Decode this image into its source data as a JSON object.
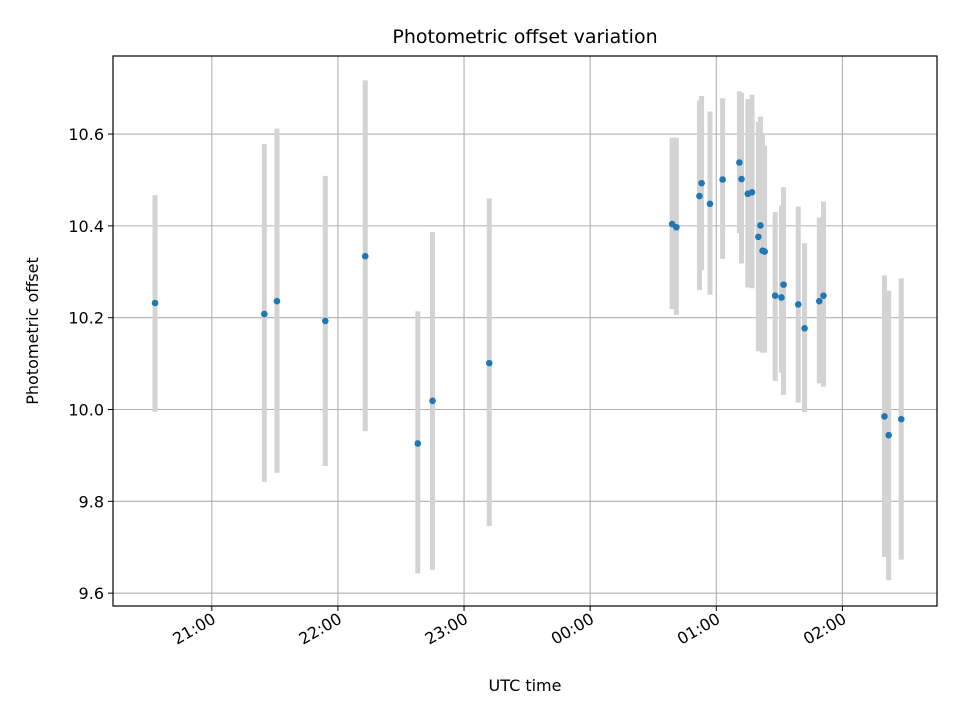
{
  "chart_data": {
    "type": "scatter",
    "title": "Photometric offset variation",
    "xlabel": "UTC time",
    "ylabel": "Photometric offset",
    "x_unit": "UTC time (HH:MM)",
    "x_ticks": [
      {
        "label": "21:00",
        "t": "21:00"
      },
      {
        "label": "22:00",
        "t": "22:00"
      },
      {
        "label": "23:00",
        "t": "23:00"
      },
      {
        "label": "00:00",
        "t": "00:00"
      },
      {
        "label": "01:00",
        "t": "01:00"
      },
      {
        "label": "02:00",
        "t": "02:00"
      }
    ],
    "y_ticks": [
      {
        "label": "9.6",
        "value": 9.6
      },
      {
        "label": "9.8",
        "value": 9.8
      },
      {
        "label": "10.0",
        "value": 10.0
      },
      {
        "label": "10.2",
        "value": 10.2
      },
      {
        "label": "10.4",
        "value": 10.4
      },
      {
        "label": "10.6",
        "value": 10.6
      }
    ],
    "xlim": [
      "20:13",
      "02:45"
    ],
    "ylim": [
      9.572,
      10.77
    ],
    "grid": true,
    "point_color": "#1f77b4",
    "errorbar_color": "#d3d3d3",
    "points": [
      {
        "t": "20:33",
        "y": 10.232,
        "lo": 9.995,
        "hi": 10.467
      },
      {
        "t": "21:25",
        "y": 10.208,
        "lo": 9.842,
        "hi": 10.578
      },
      {
        "t": "21:31",
        "y": 10.236,
        "lo": 9.862,
        "hi": 10.612
      },
      {
        "t": "21:54",
        "y": 10.193,
        "lo": 9.877,
        "hi": 10.509
      },
      {
        "t": "22:13",
        "y": 10.334,
        "lo": 9.953,
        "hi": 10.717
      },
      {
        "t": "22:38",
        "y": 9.926,
        "lo": 9.643,
        "hi": 10.214
      },
      {
        "t": "22:45",
        "y": 10.019,
        "lo": 9.651,
        "hi": 10.387
      },
      {
        "t": "23:12",
        "y": 10.101,
        "lo": 9.746,
        "hi": 10.46
      },
      {
        "t": "00:39",
        "y": 10.404,
        "lo": 10.219,
        "hi": 10.592
      },
      {
        "t": "00:41",
        "y": 10.397,
        "lo": 10.206,
        "hi": 10.592
      },
      {
        "t": "00:52",
        "y": 10.465,
        "lo": 10.26,
        "hi": 10.673
      },
      {
        "t": "00:53",
        "y": 10.493,
        "lo": 10.304,
        "hi": 10.683
      },
      {
        "t": "00:57",
        "y": 10.448,
        "lo": 10.25,
        "hi": 10.649
      },
      {
        "t": "01:03",
        "y": 10.501,
        "lo": 10.328,
        "hi": 10.678
      },
      {
        "t": "01:11",
        "y": 10.538,
        "lo": 10.384,
        "hi": 10.693
      },
      {
        "t": "01:12",
        "y": 10.502,
        "lo": 10.318,
        "hi": 10.69
      },
      {
        "t": "01:15",
        "y": 10.47,
        "lo": 10.266,
        "hi": 10.676
      },
      {
        "t": "01:17",
        "y": 10.473,
        "lo": 10.264,
        "hi": 10.686
      },
      {
        "t": "01:20",
        "y": 10.376,
        "lo": 10.127,
        "hi": 10.627
      },
      {
        "t": "01:21",
        "y": 10.401,
        "lo": 10.127,
        "hi": 10.638
      },
      {
        "t": "01:22",
        "y": 10.346,
        "lo": 10.124,
        "hi": 10.6
      },
      {
        "t": "01:23",
        "y": 10.344,
        "lo": 10.124,
        "hi": 10.575
      },
      {
        "t": "01:28",
        "y": 10.248,
        "lo": 10.062,
        "hi": 10.43
      },
      {
        "t": "01:31",
        "y": 10.244,
        "lo": 10.08,
        "hi": 10.444
      },
      {
        "t": "01:32",
        "y": 10.272,
        "lo": 10.032,
        "hi": 10.484
      },
      {
        "t": "01:39",
        "y": 10.229,
        "lo": 10.015,
        "hi": 10.442
      },
      {
        "t": "01:42",
        "y": 10.177,
        "lo": 9.994,
        "hi": 10.362
      },
      {
        "t": "01:49",
        "y": 10.236,
        "lo": 10.057,
        "hi": 10.418
      },
      {
        "t": "01:51",
        "y": 10.248,
        "lo": 10.05,
        "hi": 10.453
      },
      {
        "t": "02:20",
        "y": 9.985,
        "lo": 9.679,
        "hi": 10.292
      },
      {
        "t": "02:22",
        "y": 9.944,
        "lo": 9.628,
        "hi": 10.259
      },
      {
        "t": "02:28",
        "y": 9.979,
        "lo": 9.673,
        "hi": 10.286
      }
    ]
  }
}
